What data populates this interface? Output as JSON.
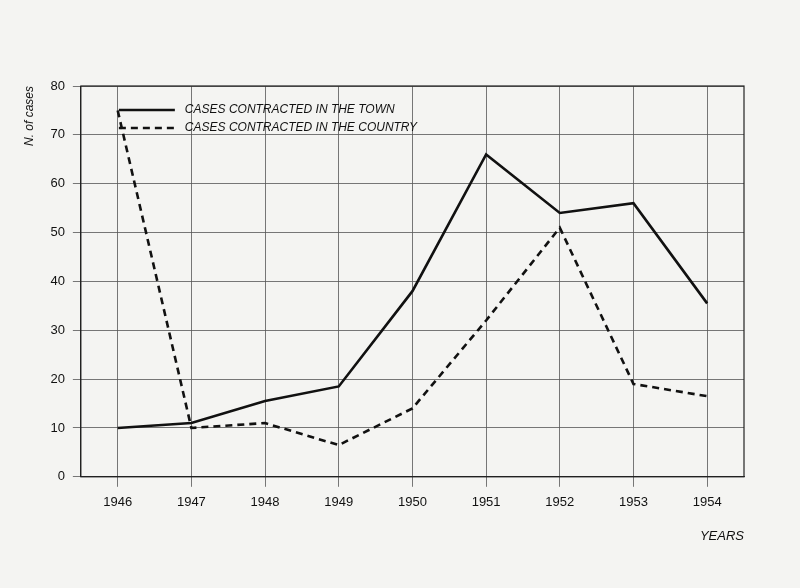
{
  "chart_data": {
    "type": "line",
    "x_label": "YEARS",
    "y_label": "N. of cases",
    "categories": [
      "1946",
      "1947",
      "1948",
      "1949",
      "1950",
      "1951",
      "1952",
      "1953",
      "1954"
    ],
    "series": [
      {
        "name": "CASES CONTRACTED IN THE TOWN",
        "color": "#111111",
        "line_style": "solid",
        "marker": "none",
        "values": [
          10,
          11,
          15.5,
          18.5,
          38,
          66,
          54,
          56,
          35.5
        ]
      },
      {
        "name": "CASES CONTRACTED IN THE COUNTRY",
        "color": "#111111",
        "line_style": "dashed",
        "marker": "none",
        "values": [
          75,
          10,
          11,
          6.5,
          14,
          32,
          51,
          19,
          16.5
        ]
      }
    ],
    "ylim": [
      0,
      80
    ],
    "yticks": [
      0,
      10,
      20,
      30,
      40,
      50,
      60,
      70,
      80
    ],
    "grid": true,
    "legend": "upper left"
  }
}
